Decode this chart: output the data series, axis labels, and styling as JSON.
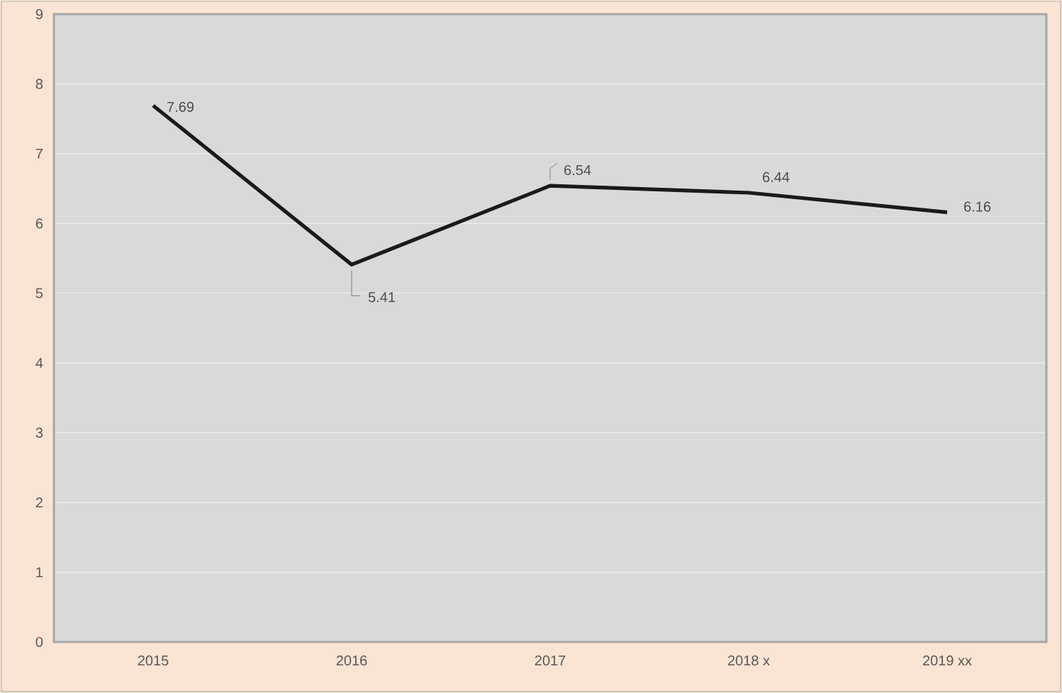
{
  "chart_data": {
    "type": "line",
    "categories": [
      "2015",
      "2016",
      "2017",
      "2018 x",
      "2019 xx"
    ],
    "series": [
      {
        "color": "#1a1a1a",
        "values": [
          7.69,
          5.41,
          6.54,
          6.44,
          6.16
        ]
      }
    ],
    "ylim": [
      0,
      9
    ],
    "yticks": [
      0,
      1,
      2,
      3,
      4,
      5,
      6,
      7,
      8,
      9
    ],
    "grid": "y",
    "data_labels": true,
    "marker": "none",
    "line_style": "solid"
  }
}
